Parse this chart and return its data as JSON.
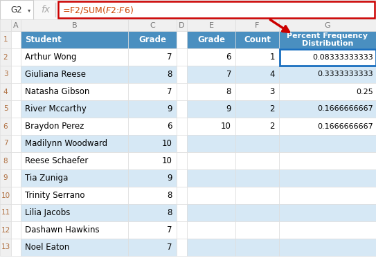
{
  "formula_bar_text": "=F2/SUM($F$2:$F$6)",
  "data_rows": [
    [
      "Arthur Wong",
      "7",
      "6",
      "1",
      "0.08333333333"
    ],
    [
      "Giuliana Reese",
      "8",
      "7",
      "4",
      "0.3333333333"
    ],
    [
      "Natasha Gibson",
      "7",
      "8",
      "3",
      "0.25"
    ],
    [
      "River Mccarthy",
      "9",
      "9",
      "2",
      "0.1666666667"
    ],
    [
      "Braydon Perez",
      "6",
      "10",
      "2",
      "0.1666666667"
    ],
    [
      "Madilynn Woodward",
      "10",
      "",
      "",
      ""
    ],
    [
      "Reese Schaefer",
      "10",
      "",
      "",
      ""
    ],
    [
      "Tia Zuniga",
      "9",
      "",
      "",
      ""
    ],
    [
      "Trinity Serrano",
      "8",
      "",
      "",
      ""
    ],
    [
      "Lilia Jacobs",
      "8",
      "",
      "",
      ""
    ],
    [
      "Dashawn Hawkins",
      "7",
      "",
      "",
      ""
    ],
    [
      "Noel Eaton",
      "7",
      "",
      "",
      ""
    ]
  ],
  "header_bg": "#4A8FC0",
  "header_text": "#FFFFFF",
  "alt_row_bg": "#D6E8F5",
  "white_row_bg": "#FFFFFF",
  "grid_color": "#C8D8E8",
  "selected_cell_border": "#1A6FBF",
  "formula_bar_border": "#CC0000",
  "arrow_color": "#CC0000",
  "row_num_color": "#B07040",
  "col_header_bg": "#F0F0F0",
  "col_header_text": "#777777"
}
